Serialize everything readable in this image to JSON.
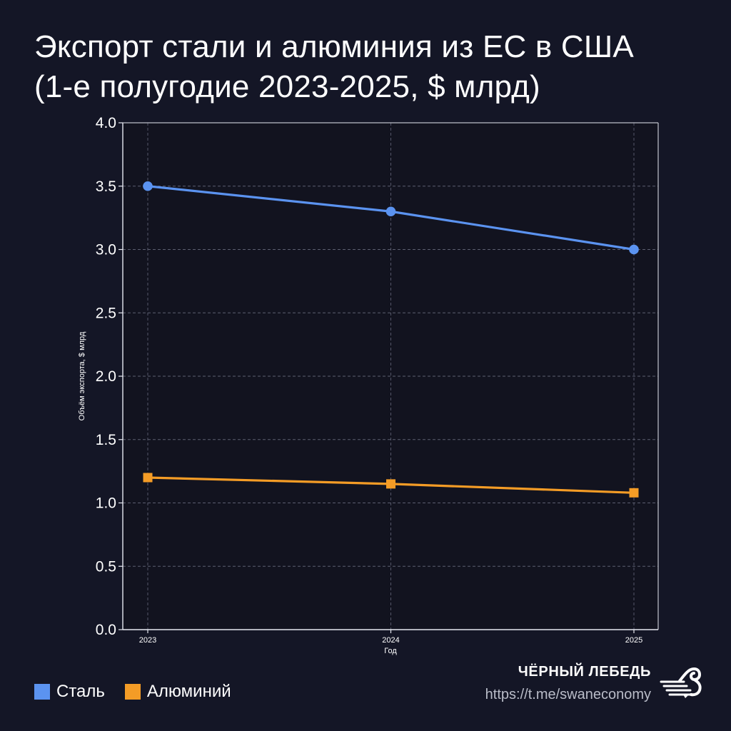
{
  "page": {
    "title_line1": "Экспорт стали и алюминия из ЕС в США",
    "title_line2": "(1-е полугодие 2023-2025, $ млрд)"
  },
  "colors": {
    "background": "#141626",
    "plot_background": "#12131f",
    "steel": "#5b93f0",
    "aluminium": "#f49c26",
    "grid": "#5c5f70",
    "text": "#ffffff",
    "muted": "#b9bcc8"
  },
  "chart_data": {
    "type": "line",
    "title": "Экспорт стали и алюминия из ЕС в США (1-е полугодие 2023-2025, $ млрд)",
    "xlabel": "Год",
    "ylabel": "Объём экспорта, $ млрд",
    "categories": [
      "2023",
      "2024",
      "2025"
    ],
    "ylim": [
      0,
      4
    ],
    "yticks": [
      "0.0",
      "0.5",
      "1.0",
      "1.5",
      "2.0",
      "2.5",
      "3.0",
      "3.5",
      "4.0"
    ],
    "grid": true,
    "series": [
      {
        "name": "Сталь",
        "marker": "circle",
        "values": [
          3.5,
          3.3,
          3.0
        ]
      },
      {
        "name": "Алюминий",
        "marker": "square",
        "values": [
          1.2,
          1.15,
          1.08
        ]
      }
    ]
  },
  "legend": {
    "items": [
      {
        "label": "Сталь"
      },
      {
        "label": "Алюминий"
      }
    ]
  },
  "brand": {
    "name": "ЧЁРНЫЙ ЛЕБЕДЬ",
    "url": "https://t.me/swaneconomy",
    "logo_icon": "swan-logo-icon"
  }
}
